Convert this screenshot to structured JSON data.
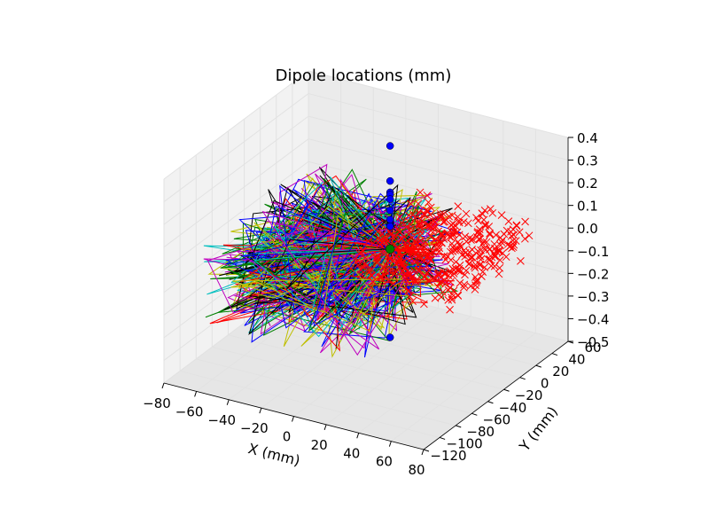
{
  "chart_data": {
    "type": "scatter",
    "projection": "3d",
    "title": "Dipole locations (mm)",
    "xlabel": "X (mm)",
    "ylabel": "Y (mm)",
    "zlabel": "",
    "xlim": [
      -80,
      80
    ],
    "ylim": [
      -120,
      60
    ],
    "zlim": [
      -0.5,
      0.4
    ],
    "x_ticks": [
      "−80",
      "−60",
      "−40",
      "−20",
      "0",
      "20",
      "40",
      "60",
      "80"
    ],
    "y_ticks": [
      "−120",
      "−100",
      "−80",
      "−60",
      "−40",
      "−20",
      "0",
      "20",
      "40",
      "60"
    ],
    "z_ticks": [
      "0.4",
      "0.3",
      "0.2",
      "0.1",
      "0.0",
      "−0.1",
      "−0.2",
      "−0.3",
      "−0.4",
      "−0.5"
    ],
    "grid": true,
    "background_pane_color": "#f2f2f2",
    "series": [
      {
        "marker": "o",
        "color": "#0000ff",
        "points": [
          {
            "x": 0,
            "y": 0,
            "z": 0.375
          },
          {
            "x": 0,
            "y": 0,
            "z": 0.22
          },
          {
            "x": 0,
            "y": 0,
            "z": 0.17
          },
          {
            "x": 0,
            "y": 0,
            "z": 0.16
          },
          {
            "x": 0,
            "y": 0,
            "z": 0.14
          },
          {
            "x": 0,
            "y": 0,
            "z": 0.09
          },
          {
            "x": 0,
            "y": 0,
            "z": 0.05
          },
          {
            "x": 0,
            "y": 0,
            "z": 0.02
          },
          {
            "x": 0,
            "y": 0,
            "z": -0.47
          }
        ]
      },
      {
        "marker": "x",
        "color": "#ff0000",
        "points_summary": "dense cloud of several hundred dipole positions, x ≈ 0 to 70 mm, y ≈ -60 to 40 mm, z ≈ -0.1 to 0.1"
      },
      {
        "marker": "o",
        "color": "#008000",
        "points": [
          {
            "x": 0,
            "y": 0,
            "z": -0.08
          }
        ]
      },
      {
        "marker": "line",
        "colors": [
          "#0000ff",
          "#008000",
          "#ff0000",
          "#00bfbf",
          "#bf00bf",
          "#bfbf00",
          "#000000"
        ],
        "points_summary": "many overlapping polylines radiating from origin, x ≈ -70 to 30 mm, y ≈ -100 to 40 mm, z ≈ -0.3 to 0.1"
      }
    ]
  }
}
